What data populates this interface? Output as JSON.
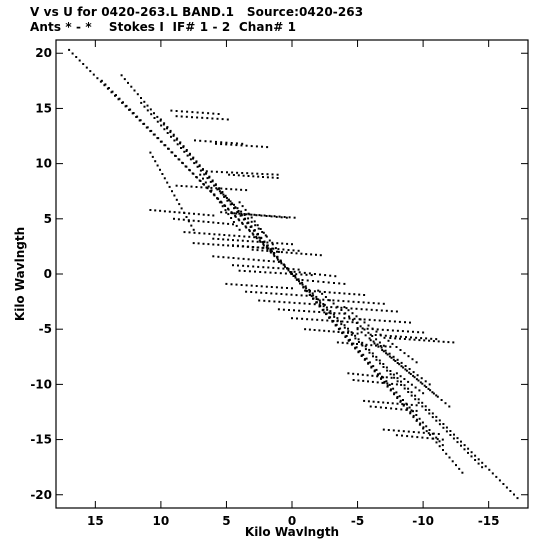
{
  "header": {
    "title_line1": "V vs U for 0420-263.L BAND.1   Source:0420-263",
    "title_line2": "Ants * - *    Stokes I  IF# 1 - 2  Chan# 1"
  },
  "chart_data": {
    "type": "scatter",
    "xlabel": "Kilo Wavlngth",
    "ylabel": "Kilo Wavlngth",
    "xlim": [
      18,
      -18
    ],
    "ylim": [
      -21.2,
      21.2
    ],
    "xticks": [
      15,
      10,
      5,
      0,
      -5,
      -10,
      -15
    ],
    "yticks": [
      20,
      15,
      10,
      5,
      0,
      -5,
      -10,
      -15,
      -20
    ],
    "grid": false,
    "marker_color": "#000000",
    "tracks": [
      {
        "x": [
          17,
          -17.2
        ],
        "y": [
          20.3,
          -20.3
        ]
      },
      {
        "x": [
          14.5,
          -14.5
        ],
        "y": [
          17.5,
          -17.5
        ]
      },
      {
        "x": [
          13,
          -13
        ],
        "y": [
          18,
          -18
        ]
      },
      {
        "x": [
          11.5,
          -11.5
        ],
        "y": [
          15.5,
          -15.5
        ]
      },
      {
        "x": [
          10,
          -10
        ],
        "y": [
          14,
          -14
        ]
      },
      {
        "x": [
          9.2,
          5.6
        ],
        "y": [
          14.8,
          14.5
        ]
      },
      {
        "x": [
          8.8,
          4.9
        ],
        "y": [
          14.3,
          14.0
        ]
      },
      {
        "x": [
          7.4,
          3.8
        ],
        "y": [
          12.1,
          11.8
        ]
      },
      {
        "x": [
          5.8,
          1.9
        ],
        "y": [
          11.8,
          11.5
        ]
      },
      {
        "x": [
          6.5,
          1.1
        ],
        "y": [
          9.3,
          9.0
        ]
      },
      {
        "x": [
          4.8,
          1.1
        ],
        "y": [
          9.0,
          8.7
        ]
      },
      {
        "x": [
          8.8,
          3.5
        ],
        "y": [
          8.0,
          7.6
        ]
      },
      {
        "x": [
          10.8,
          7.5
        ],
        "y": [
          11.0,
          4.0
        ]
      },
      {
        "x": [
          7,
          4
        ],
        "y": [
          9,
          4
        ]
      },
      {
        "x": [
          5.5,
          2
        ],
        "y": [
          7.5,
          3.5
        ]
      },
      {
        "x": [
          4,
          1
        ],
        "y": [
          6.5,
          2
        ]
      },
      {
        "x": [
          5.4,
          0.4
        ],
        "y": [
          5.6,
          5.1
        ]
      },
      {
        "x": [
          4.4,
          -0.2
        ],
        "y": [
          5.5,
          5.1
        ]
      },
      {
        "x": [
          10.8,
          6
        ],
        "y": [
          5.8,
          5.3
        ]
      },
      {
        "x": [
          9,
          4.5
        ],
        "y": [
          5.0,
          4.5
        ]
      },
      {
        "x": [
          8.2,
          2.5
        ],
        "y": [
          3.8,
          3.3
        ]
      },
      {
        "x": [
          7.5,
          1.5
        ],
        "y": [
          2.8,
          2.3
        ]
      },
      {
        "x": [
          6,
          0
        ],
        "y": [
          3.2,
          2.7
        ]
      },
      {
        "x": [
          4.5,
          -0.5
        ],
        "y": [
          2.6,
          2.1
        ]
      },
      {
        "x": [
          3,
          -2.2
        ],
        "y": [
          2.2,
          1.7
        ]
      },
      {
        "x": [
          6,
          1
        ],
        "y": [
          1.6,
          1.1
        ]
      },
      {
        "x": [
          4.5,
          -0.5
        ],
        "y": [
          0.8,
          0.4
        ]
      },
      {
        "x": [
          4,
          -1.5
        ],
        "y": [
          0.3,
          -0.1
        ]
      },
      {
        "x": [
          5,
          0
        ],
        "y": [
          -0.9,
          -1.3
        ]
      },
      {
        "x": [
          3.5,
          -1.5
        ],
        "y": [
          -1.6,
          -2.0
        ]
      },
      {
        "x": [
          2.5,
          -2.5
        ],
        "y": [
          -2.4,
          -2.8
        ]
      },
      {
        "x": [
          1,
          -4
        ],
        "y": [
          -3.2,
          -3.6
        ]
      },
      {
        "x": [
          0,
          -5
        ],
        "y": [
          -4.0,
          -4.4
        ]
      },
      {
        "x": [
          -1,
          -5
        ],
        "y": [
          -5.0,
          -5.4
        ]
      },
      {
        "x": [
          -0.2,
          -3.3
        ],
        "y": [
          0.2,
          -0.2
        ]
      },
      {
        "x": [
          -0.4,
          -4.0
        ],
        "y": [
          -0.5,
          -0.9
        ]
      },
      {
        "x": [
          -1.0,
          -5.5
        ],
        "y": [
          -1.5,
          -1.9
        ]
      },
      {
        "x": [
          -2.0,
          -7.0
        ],
        "y": [
          -2.3,
          -2.7
        ]
      },
      {
        "x": [
          -3.0,
          -8.0
        ],
        "y": [
          -3.0,
          -3.4
        ]
      },
      {
        "x": [
          -4.0,
          -9.0
        ],
        "y": [
          -4.0,
          -4.4
        ]
      },
      {
        "x": [
          -5.0,
          -10.0
        ],
        "y": [
          -4.9,
          -5.3
        ]
      },
      {
        "x": [
          -6.0,
          -11.0
        ],
        "y": [
          -5.5,
          -5.9
        ]
      },
      {
        "x": [
          -7.5,
          -12.3
        ],
        "y": [
          -5.8,
          -6.2
        ]
      },
      {
        "x": [
          -3.5,
          -7.5
        ],
        "y": [
          -6.2,
          -6.6
        ]
      },
      {
        "x": [
          -5.0,
          -10.5
        ],
        "y": [
          -5.0,
          -10.0
        ]
      },
      {
        "x": [
          -6.0,
          -11.0
        ],
        "y": [
          -6.0,
          -11.0
        ]
      },
      {
        "x": [
          -7.0,
          -12.0
        ],
        "y": [
          -7.0,
          -12.0
        ]
      },
      {
        "x": [
          -4.0,
          -9.5
        ],
        "y": [
          -3.0,
          -8.0
        ]
      },
      {
        "x": [
          -2.0,
          -7.0
        ],
        "y": [
          -1.5,
          -6.5
        ]
      },
      {
        "x": [
          -8.0,
          -10.0
        ],
        "y": [
          -9.0,
          -10.8
        ]
      },
      {
        "x": [
          -4.3,
          -7.6
        ],
        "y": [
          -9.0,
          -9.4
        ]
      },
      {
        "x": [
          -4.7,
          -8.0
        ],
        "y": [
          -9.6,
          -10.0
        ]
      },
      {
        "x": [
          -5.5,
          -9.5
        ],
        "y": [
          -11.5,
          -11.9
        ]
      },
      {
        "x": [
          -6.0,
          -9.5
        ],
        "y": [
          -12.0,
          -12.4
        ]
      },
      {
        "x": [
          -7.0,
          -11.2
        ],
        "y": [
          -14.1,
          -14.5
        ]
      },
      {
        "x": [
          -8.0,
          -11.5
        ],
        "y": [
          -14.6,
          -15.0
        ]
      }
    ]
  }
}
